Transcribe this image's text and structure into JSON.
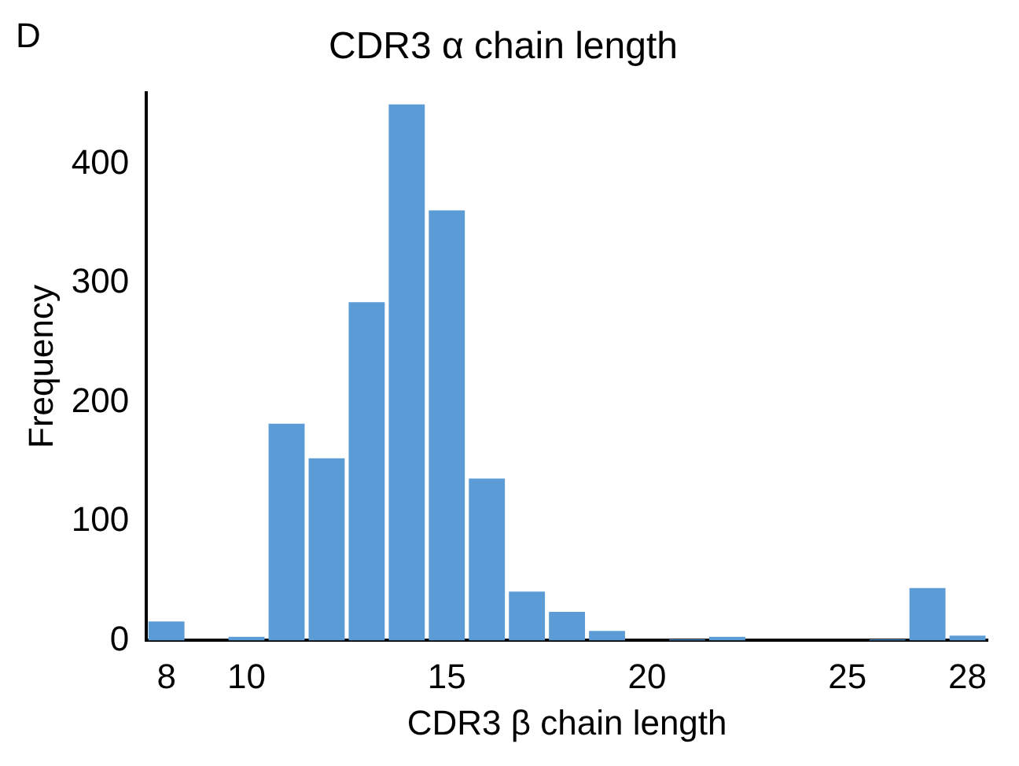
{
  "chart_data": {
    "type": "histogram",
    "title": "CDR3 α chain length",
    "xlabel": "CDR3 β chain length",
    "ylabel": "Frequency",
    "annotations": [
      "D"
    ],
    "bins": [
      7.5,
      8.5,
      9.5,
      10.5,
      11.5,
      12.5,
      13.5,
      14.5,
      15.5,
      16.5,
      17.5,
      18.5,
      19.5,
      20.5,
      21.5,
      22.5,
      23.5,
      24.5,
      25.5,
      26.5,
      27.5,
      28.5
    ],
    "values": [
      16,
      0,
      3,
      182,
      153,
      284,
      450,
      361,
      136,
      41,
      24,
      8,
      0,
      1,
      3,
      0,
      0,
      0,
      1,
      44,
      4
    ],
    "color": "#5b9bd6",
    "xlim": [
      7.5,
      28.5
    ],
    "xticks": [
      8,
      10,
      15,
      20,
      25,
      28
    ],
    "ylim": [
      0,
      460
    ],
    "yticks": [
      0,
      100,
      200,
      300,
      400
    ],
    "grid": false,
    "legend": false
  }
}
